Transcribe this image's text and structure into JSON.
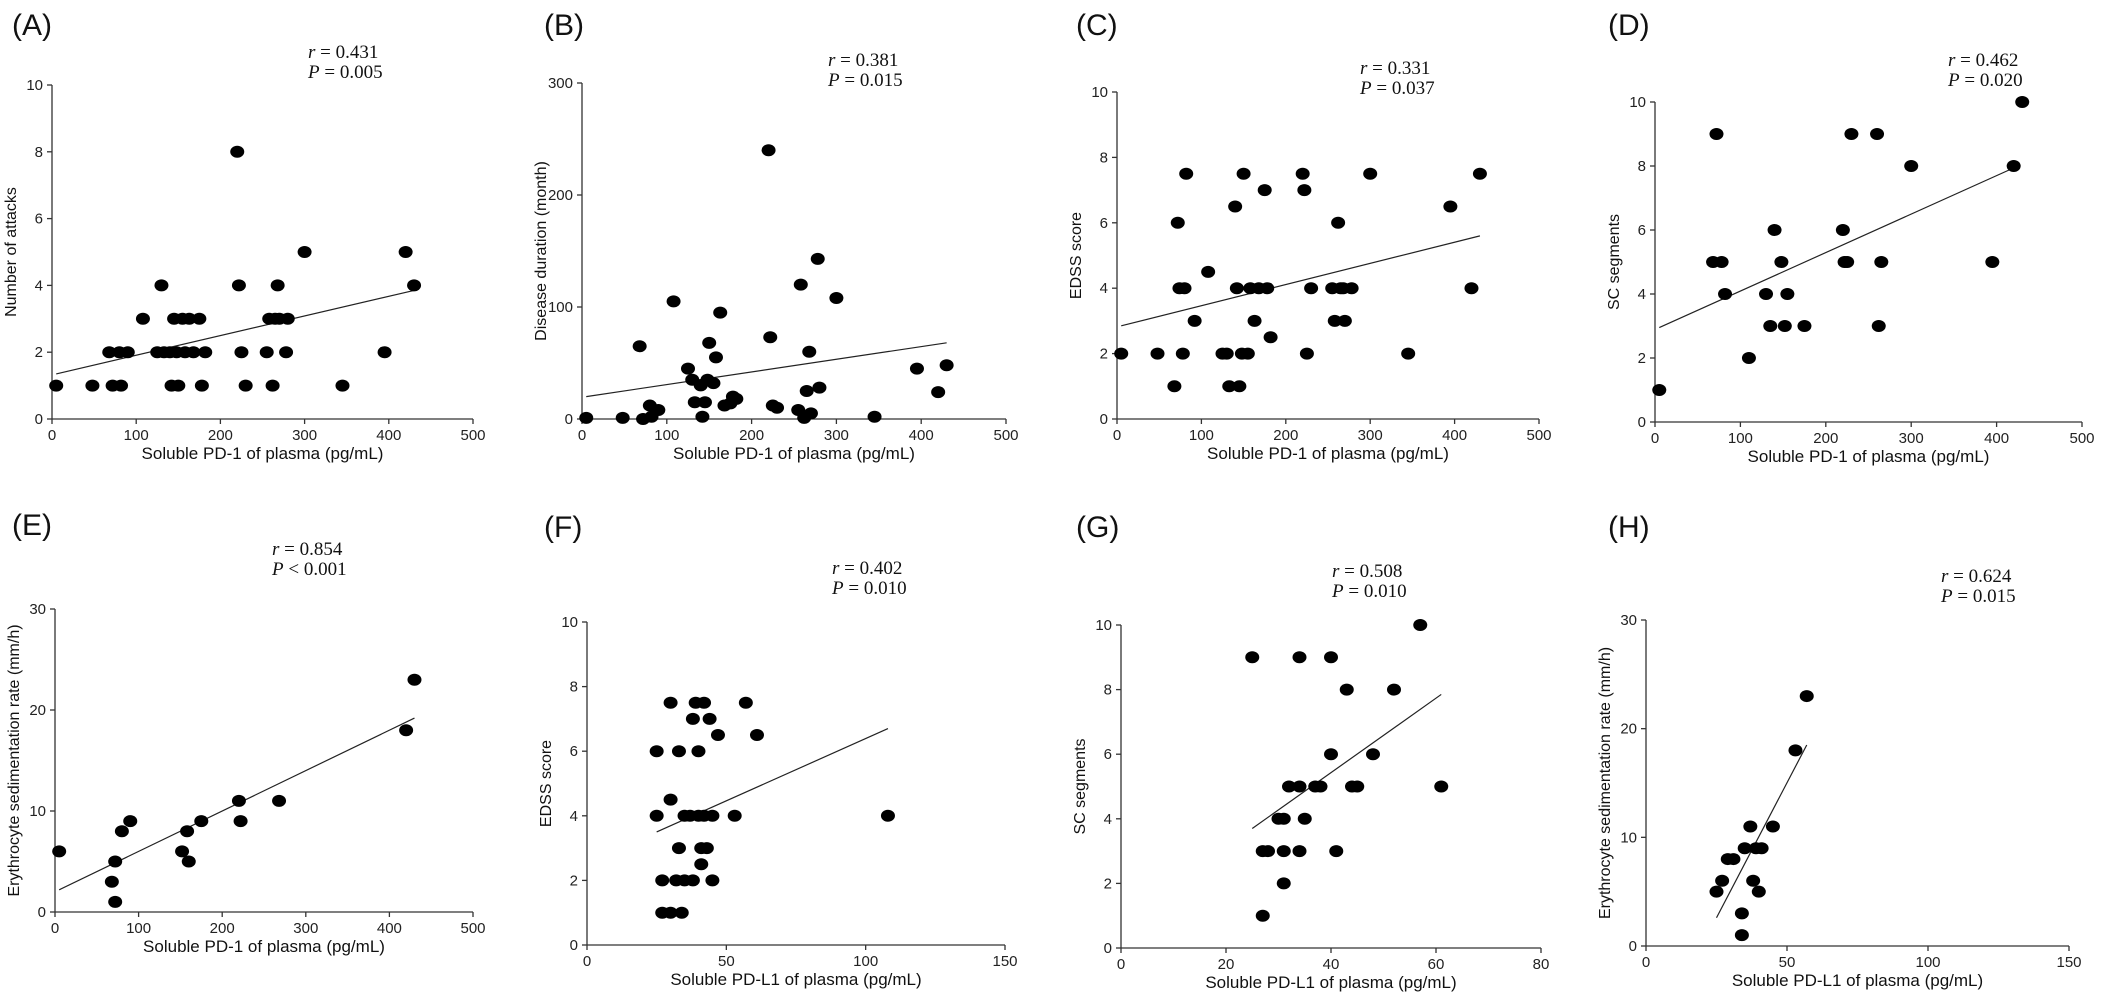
{
  "chart_data": [
    {
      "type": "scatter",
      "panel": "(A)",
      "xlabel": "Soluble PD-1 of plasma (pg/mL)",
      "ylabel": "Number of attacks",
      "xlim": [
        0,
        500
      ],
      "ylim": [
        0,
        10
      ],
      "xticks": [
        0,
        100,
        200,
        300,
        400,
        500
      ],
      "yticks": [
        0,
        2,
        4,
        6,
        8,
        10
      ],
      "r_text": "r = 0.431",
      "p_text": "P = 0.005",
      "fit": [
        [
          5,
          1.35
        ],
        [
          430,
          3.85
        ]
      ],
      "points": [
        [
          5,
          1
        ],
        [
          48,
          1
        ],
        [
          68,
          2
        ],
        [
          72,
          1
        ],
        [
          80,
          2
        ],
        [
          82,
          1
        ],
        [
          90,
          2
        ],
        [
          108,
          3
        ],
        [
          125,
          2
        ],
        [
          130,
          4
        ],
        [
          133,
          2
        ],
        [
          140,
          2
        ],
        [
          142,
          1
        ],
        [
          145,
          3
        ],
        [
          148,
          2
        ],
        [
          150,
          1
        ],
        [
          155,
          3
        ],
        [
          158,
          2
        ],
        [
          163,
          3
        ],
        [
          168,
          2
        ],
        [
          175,
          3
        ],
        [
          178,
          1
        ],
        [
          182,
          2
        ],
        [
          220,
          8
        ],
        [
          222,
          4
        ],
        [
          225,
          2
        ],
        [
          230,
          1
        ],
        [
          255,
          2
        ],
        [
          258,
          3
        ],
        [
          262,
          1
        ],
        [
          265,
          3
        ],
        [
          268,
          4
        ],
        [
          270,
          3
        ],
        [
          278,
          2
        ],
        [
          280,
          3
        ],
        [
          300,
          5
        ],
        [
          345,
          1
        ],
        [
          395,
          2
        ],
        [
          420,
          5
        ],
        [
          430,
          4
        ]
      ]
    },
    {
      "type": "scatter",
      "panel": "(B)",
      "xlabel": "Soluble PD-1 of plasma (pg/mL)",
      "ylabel": "Disease duration (month)",
      "xlim": [
        0,
        500
      ],
      "ylim": [
        0,
        300
      ],
      "xticks": [
        0,
        100,
        200,
        300,
        400,
        500
      ],
      "yticks": [
        0,
        100,
        200,
        300
      ],
      "r_text": "r = 0.381",
      "p_text": "P = 0.015",
      "fit": [
        [
          5,
          20
        ],
        [
          430,
          68
        ]
      ],
      "points": [
        [
          5,
          1
        ],
        [
          48,
          1
        ],
        [
          68,
          65
        ],
        [
          72,
          0
        ],
        [
          80,
          12
        ],
        [
          82,
          2
        ],
        [
          90,
          8
        ],
        [
          108,
          105
        ],
        [
          125,
          45
        ],
        [
          130,
          35
        ],
        [
          133,
          15
        ],
        [
          140,
          30
        ],
        [
          142,
          2
        ],
        [
          145,
          15
        ],
        [
          148,
          35
        ],
        [
          150,
          68
        ],
        [
          155,
          32
        ],
        [
          158,
          55
        ],
        [
          163,
          95
        ],
        [
          168,
          12
        ],
        [
          175,
          14
        ],
        [
          178,
          20
        ],
        [
          182,
          18
        ],
        [
          220,
          240
        ],
        [
          222,
          73
        ],
        [
          225,
          12
        ],
        [
          230,
          10
        ],
        [
          255,
          8
        ],
        [
          258,
          120
        ],
        [
          262,
          1
        ],
        [
          265,
          25
        ],
        [
          268,
          60
        ],
        [
          270,
          5
        ],
        [
          278,
          143
        ],
        [
          280,
          28
        ],
        [
          300,
          108
        ],
        [
          345,
          2
        ],
        [
          395,
          45
        ],
        [
          420,
          24
        ],
        [
          430,
          48
        ]
      ]
    },
    {
      "type": "scatter",
      "panel": "(C)",
      "xlabel": "Soluble PD-1 of plasma (pg/mL)",
      "ylabel": "EDSS score",
      "xlim": [
        0,
        500
      ],
      "ylim": [
        0,
        10
      ],
      "xticks": [
        0,
        100,
        200,
        300,
        400,
        500
      ],
      "yticks": [
        0,
        2,
        4,
        6,
        8,
        10
      ],
      "r_text": "r = 0.331",
      "p_text": "P = 0.037",
      "fit": [
        [
          5,
          2.85
        ],
        [
          430,
          5.6
        ]
      ],
      "points": [
        [
          5,
          2
        ],
        [
          48,
          2
        ],
        [
          68,
          1
        ],
        [
          72,
          6
        ],
        [
          74,
          4
        ],
        [
          78,
          2
        ],
        [
          80,
          4
        ],
        [
          82,
          7.5
        ],
        [
          92,
          3
        ],
        [
          108,
          4.5
        ],
        [
          125,
          2
        ],
        [
          130,
          2
        ],
        [
          133,
          1
        ],
        [
          140,
          6.5
        ],
        [
          142,
          4
        ],
        [
          145,
          1
        ],
        [
          148,
          2
        ],
        [
          150,
          7.5
        ],
        [
          155,
          2
        ],
        [
          158,
          4
        ],
        [
          163,
          3
        ],
        [
          168,
          4
        ],
        [
          175,
          7
        ],
        [
          178,
          4
        ],
        [
          182,
          2.5
        ],
        [
          220,
          7.5
        ],
        [
          222,
          7
        ],
        [
          225,
          2
        ],
        [
          230,
          4
        ],
        [
          255,
          4
        ],
        [
          258,
          3
        ],
        [
          262,
          6
        ],
        [
          265,
          4
        ],
        [
          268,
          4
        ],
        [
          270,
          3
        ],
        [
          278,
          4
        ],
        [
          300,
          7.5
        ],
        [
          345,
          2
        ],
        [
          395,
          6.5
        ],
        [
          420,
          4
        ],
        [
          430,
          7.5
        ]
      ]
    },
    {
      "type": "scatter",
      "panel": "(D)",
      "xlabel": "Soluble PD-1 of plasma (pg/mL)",
      "ylabel": "SC segments",
      "xlim": [
        0,
        500
      ],
      "ylim": [
        0,
        10
      ],
      "xticks": [
        0,
        100,
        200,
        300,
        400,
        500
      ],
      "yticks": [
        0,
        2,
        4,
        6,
        8,
        10
      ],
      "r_text": "r = 0.462",
      "p_text": "P = 0.020",
      "fit": [
        [
          5,
          2.95
        ],
        [
          425,
          8.0
        ]
      ],
      "points": [
        [
          5,
          1
        ],
        [
          68,
          5
        ],
        [
          72,
          9
        ],
        [
          78,
          5
        ],
        [
          82,
          4
        ],
        [
          110,
          2
        ],
        [
          130,
          4
        ],
        [
          135,
          3
        ],
        [
          140,
          6
        ],
        [
          148,
          5
        ],
        [
          152,
          3
        ],
        [
          155,
          4
        ],
        [
          175,
          3
        ],
        [
          220,
          6
        ],
        [
          222,
          5
        ],
        [
          225,
          5
        ],
        [
          230,
          9
        ],
        [
          260,
          9
        ],
        [
          262,
          3
        ],
        [
          265,
          5
        ],
        [
          300,
          8
        ],
        [
          395,
          5
        ],
        [
          420,
          8
        ],
        [
          430,
          10
        ]
      ]
    },
    {
      "type": "scatter",
      "panel": "(E)",
      "xlabel": "Soluble PD-1 of plasma (pg/mL)",
      "ylabel": "Erythrocyte sedimentation rate (mm/h)",
      "xlim": [
        0,
        500
      ],
      "ylim": [
        0,
        30
      ],
      "xticks": [
        0,
        100,
        200,
        300,
        400,
        500
      ],
      "yticks": [
        0,
        10,
        20,
        30
      ],
      "r_text": "r = 0.854",
      "p_text": "P < 0.001",
      "fit": [
        [
          5,
          2.2
        ],
        [
          430,
          19.2
        ]
      ],
      "points": [
        [
          5,
          6
        ],
        [
          68,
          3
        ],
        [
          72,
          1
        ],
        [
          72,
          5
        ],
        [
          80,
          8
        ],
        [
          90,
          9
        ],
        [
          152,
          6
        ],
        [
          158,
          8
        ],
        [
          160,
          5
        ],
        [
          175,
          9
        ],
        [
          220,
          11
        ],
        [
          222,
          9
        ],
        [
          268,
          11
        ],
        [
          420,
          18
        ],
        [
          430,
          23
        ]
      ]
    },
    {
      "type": "scatter",
      "panel": "(F)",
      "xlabel": "Soluble PD-L1 of plasma (pg/mL)",
      "ylabel": "EDSS score",
      "xlim": [
        0,
        150
      ],
      "ylim": [
        0,
        10
      ],
      "xticks": [
        0,
        50,
        100,
        150
      ],
      "yticks": [
        0,
        2,
        4,
        6,
        8,
        10
      ],
      "r_text": "r = 0.402",
      "p_text": "P = 0.010",
      "fit": [
        [
          25,
          3.5
        ],
        [
          108,
          6.7
        ]
      ],
      "points": [
        [
          25,
          4
        ],
        [
          25,
          6
        ],
        [
          27,
          2
        ],
        [
          27,
          1
        ],
        [
          30,
          1
        ],
        [
          30,
          4.5
        ],
        [
          30,
          7.5
        ],
        [
          32,
          2
        ],
        [
          33,
          6
        ],
        [
          33,
          3
        ],
        [
          34,
          1
        ],
        [
          35,
          2
        ],
        [
          35,
          4
        ],
        [
          37,
          4
        ],
        [
          38,
          7
        ],
        [
          38,
          2
        ],
        [
          39,
          7.5
        ],
        [
          40,
          4
        ],
        [
          40,
          6
        ],
        [
          41,
          3
        ],
        [
          41,
          2.5
        ],
        [
          42,
          7.5
        ],
        [
          42,
          4
        ],
        [
          43,
          3
        ],
        [
          44,
          7
        ],
        [
          45,
          2
        ],
        [
          45,
          4
        ],
        [
          47,
          6.5
        ],
        [
          53,
          4
        ],
        [
          57,
          7.5
        ],
        [
          61,
          6.5
        ],
        [
          108,
          4
        ]
      ]
    },
    {
      "type": "scatter",
      "panel": "(G)",
      "xlabel": "Soluble PD-L1 of plasma (pg/mL)",
      "ylabel": "SC segments",
      "xlim": [
        0,
        80
      ],
      "ylim": [
        0,
        10
      ],
      "xticks": [
        0,
        20,
        40,
        60,
        80
      ],
      "yticks": [
        0,
        2,
        4,
        6,
        8,
        10
      ],
      "r_text": "r = 0.508",
      "p_text": "P = 0.010",
      "fit": [
        [
          25,
          3.7
        ],
        [
          61,
          7.85
        ]
      ],
      "points": [
        [
          25,
          9
        ],
        [
          27,
          1
        ],
        [
          27,
          3
        ],
        [
          28,
          3
        ],
        [
          30,
          4
        ],
        [
          31,
          2
        ],
        [
          31,
          3
        ],
        [
          31,
          4
        ],
        [
          32,
          5
        ],
        [
          34,
          5
        ],
        [
          34,
          9
        ],
        [
          34,
          3
        ],
        [
          35,
          4
        ],
        [
          37,
          5
        ],
        [
          38,
          5
        ],
        [
          40,
          6
        ],
        [
          40,
          9
        ],
        [
          41,
          3
        ],
        [
          43,
          8
        ],
        [
          44,
          5
        ],
        [
          45,
          5
        ],
        [
          48,
          6
        ],
        [
          52,
          8
        ],
        [
          57,
          10
        ],
        [
          61,
          5
        ]
      ]
    },
    {
      "type": "scatter",
      "panel": "(H)",
      "xlabel": "Soluble PD-L1 of plasma (pg/mL)",
      "ylabel": "Erythrocyte sedimentation rate (mm/h)",
      "xlim": [
        0,
        150
      ],
      "ylim": [
        0,
        30
      ],
      "xticks": [
        0,
        50,
        100,
        150
      ],
      "yticks": [
        0,
        10,
        20,
        30
      ],
      "r_text": "r = 0.624",
      "p_text": "P = 0.015",
      "fit": [
        [
          25,
          2.6
        ],
        [
          57,
          18.5
        ]
      ],
      "points": [
        [
          25,
          5
        ],
        [
          27,
          6
        ],
        [
          29,
          8
        ],
        [
          31,
          8
        ],
        [
          34,
          3
        ],
        [
          34,
          1
        ],
        [
          35,
          9
        ],
        [
          37,
          11
        ],
        [
          38,
          6
        ],
        [
          39,
          9
        ],
        [
          40,
          5
        ],
        [
          41,
          9
        ],
        [
          45,
          11
        ],
        [
          53,
          18
        ],
        [
          57,
          23
        ]
      ]
    }
  ]
}
